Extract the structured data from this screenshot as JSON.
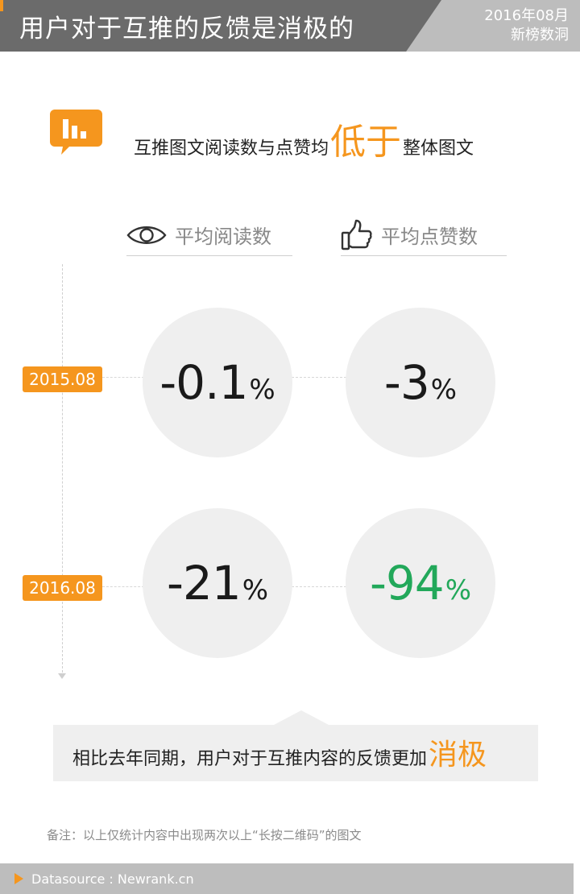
{
  "header": {
    "title": "用户对于互推的反馈是消极的",
    "date_line1": "2016年08月",
    "date_line2": "新榜数洞"
  },
  "subtitle": {
    "part1": "互推图文阅读数与点赞均",
    "highlight": "低于",
    "part2": "整体图文"
  },
  "columns": [
    {
      "label": "平均阅读数",
      "icon": "eye-icon"
    },
    {
      "label": "平均点赞数",
      "icon": "thumbs-up-icon"
    }
  ],
  "rows": [
    {
      "year": "2015.08",
      "reads": "-0.1",
      "likes": "-3"
    },
    {
      "year": "2016.08",
      "reads": "-21",
      "likes": "-94"
    }
  ],
  "percent_sign": "%",
  "conclusion": {
    "text": "相比去年同期，用户对于互推内容的反馈更加",
    "highlight": "消极"
  },
  "note": "备注：以上仅统计内容中出现两次以上“长按二维码”的图文",
  "footer": {
    "source": "Datasource : Newrank.cn"
  },
  "colors": {
    "accent": "#f5961e",
    "positive_highlight": "#22a85a",
    "header_dark": "#6b6b6b",
    "header_light": "#bdbdbd"
  }
}
